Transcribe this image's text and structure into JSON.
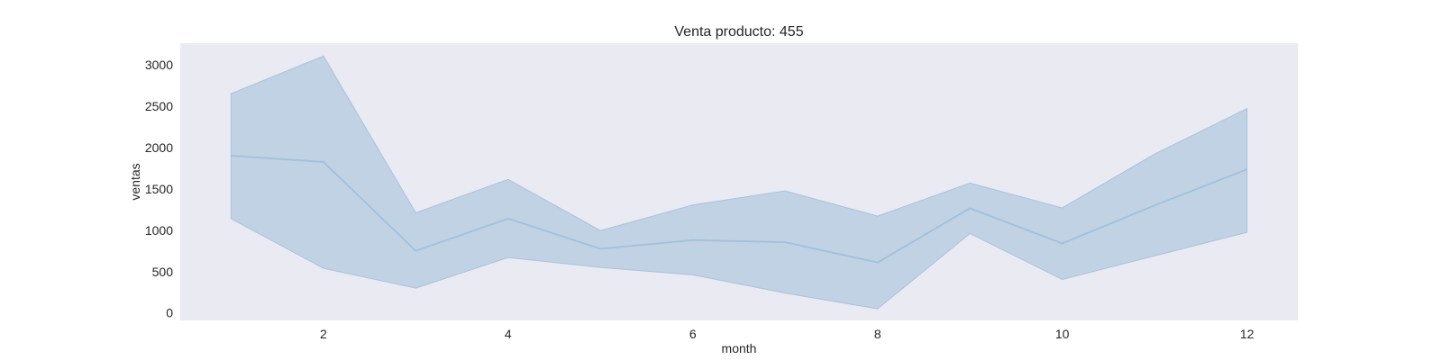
{
  "chart_data": {
    "type": "line",
    "title": "Venta producto: 455",
    "xlabel": "month",
    "ylabel": "ventas",
    "xlim": [
      0.45,
      12.55
    ],
    "ylim": [
      -90,
      3260
    ],
    "xticks": [
      2,
      4,
      6,
      8,
      10,
      12
    ],
    "yticks": [
      0,
      500,
      1000,
      1500,
      2000,
      2500,
      3000
    ],
    "grid": false,
    "colors": {
      "background": "#eaeaf2",
      "line": "#a1c0dc",
      "band_fill": "#c1d2e4",
      "band_edge": "#a7c3dd"
    },
    "series": [
      {
        "x": [
          1,
          2,
          3,
          4,
          5,
          6,
          7,
          8,
          9,
          10,
          11,
          12
        ],
        "values": [
          1900,
          1825,
          750,
          1140,
          775,
          880,
          855,
          610,
          1265,
          840,
          1300,
          1735
        ],
        "upper": [
          2650,
          3105,
          1210,
          1615,
          995,
          1305,
          1475,
          1170,
          1570,
          1270,
          1920,
          2470
        ],
        "lower": [
          1140,
          540,
          300,
          670,
          550,
          460,
          240,
          50,
          960,
          405,
          690,
          975
        ]
      }
    ]
  }
}
